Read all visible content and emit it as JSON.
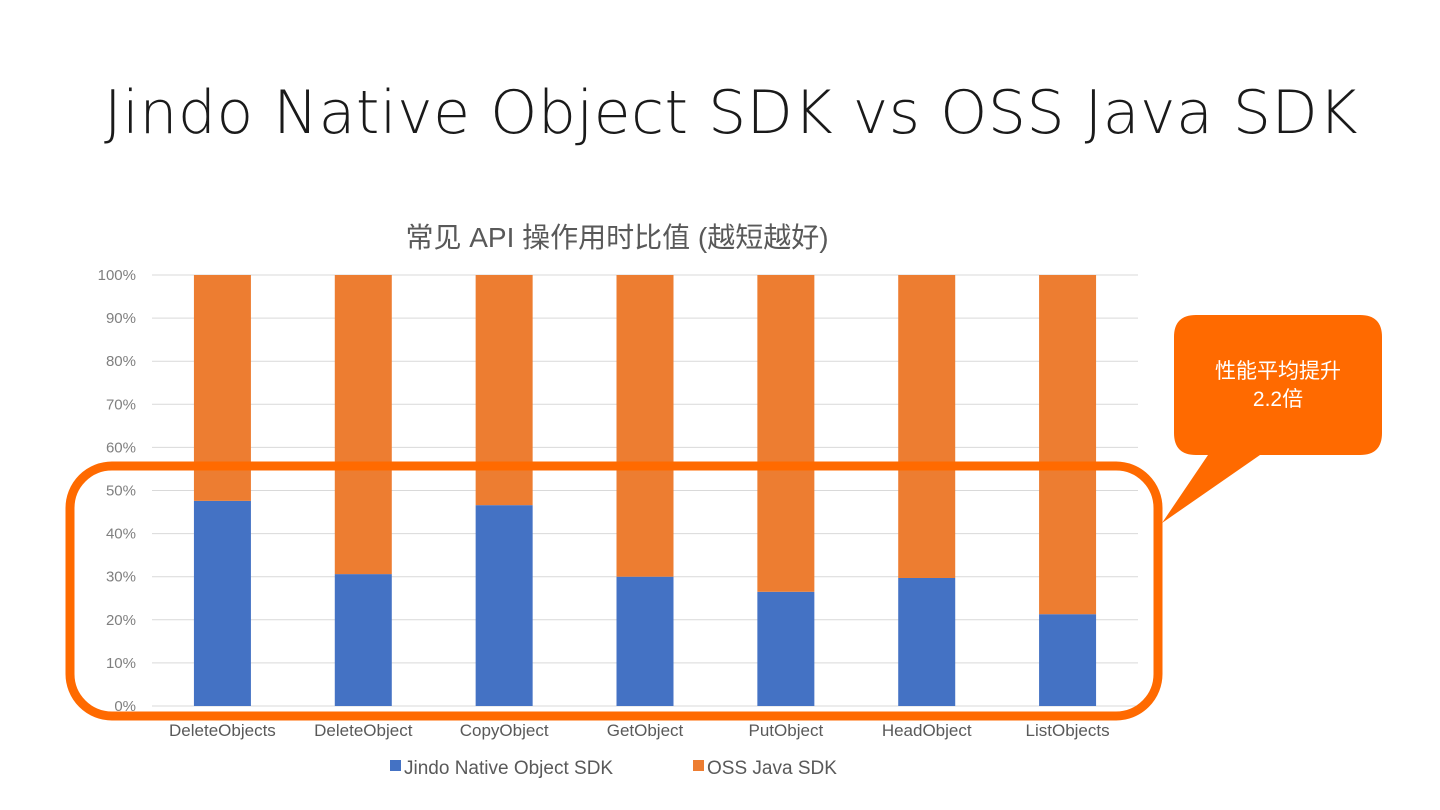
{
  "slide": {
    "title": "Jindo Native Object SDK vs OSS Java SDK"
  },
  "callout": {
    "line1": "性能平均提升",
    "line2": "2.2倍",
    "color": "#ff6a00"
  },
  "chart_data": {
    "type": "bar",
    "stacked": true,
    "percent_stacked": true,
    "title": "常见 API 操作用时比值 (越短越好)",
    "xlabel": "",
    "ylabel": "",
    "ylim": [
      0,
      100
    ],
    "yticks": [
      "0%",
      "10%",
      "20%",
      "30%",
      "40%",
      "50%",
      "60%",
      "70%",
      "80%",
      "90%",
      "100%"
    ],
    "grid": true,
    "legend_position": "bottom",
    "categories": [
      "DeleteObjects",
      "DeleteObject",
      "CopyObject",
      "GetObject",
      "PutObject",
      "HeadObject",
      "ListObjects"
    ],
    "series": [
      {
        "name": "Jindo Native Object SDK",
        "color": "#4472c4",
        "values": [
          47.6,
          30.6,
          46.6,
          30.0,
          26.5,
          29.7,
          21.3
        ]
      },
      {
        "name": "OSS Java SDK",
        "color": "#ed7d31",
        "values": [
          52.4,
          69.4,
          53.4,
          70.0,
          73.5,
          70.3,
          78.7
        ]
      }
    ]
  }
}
